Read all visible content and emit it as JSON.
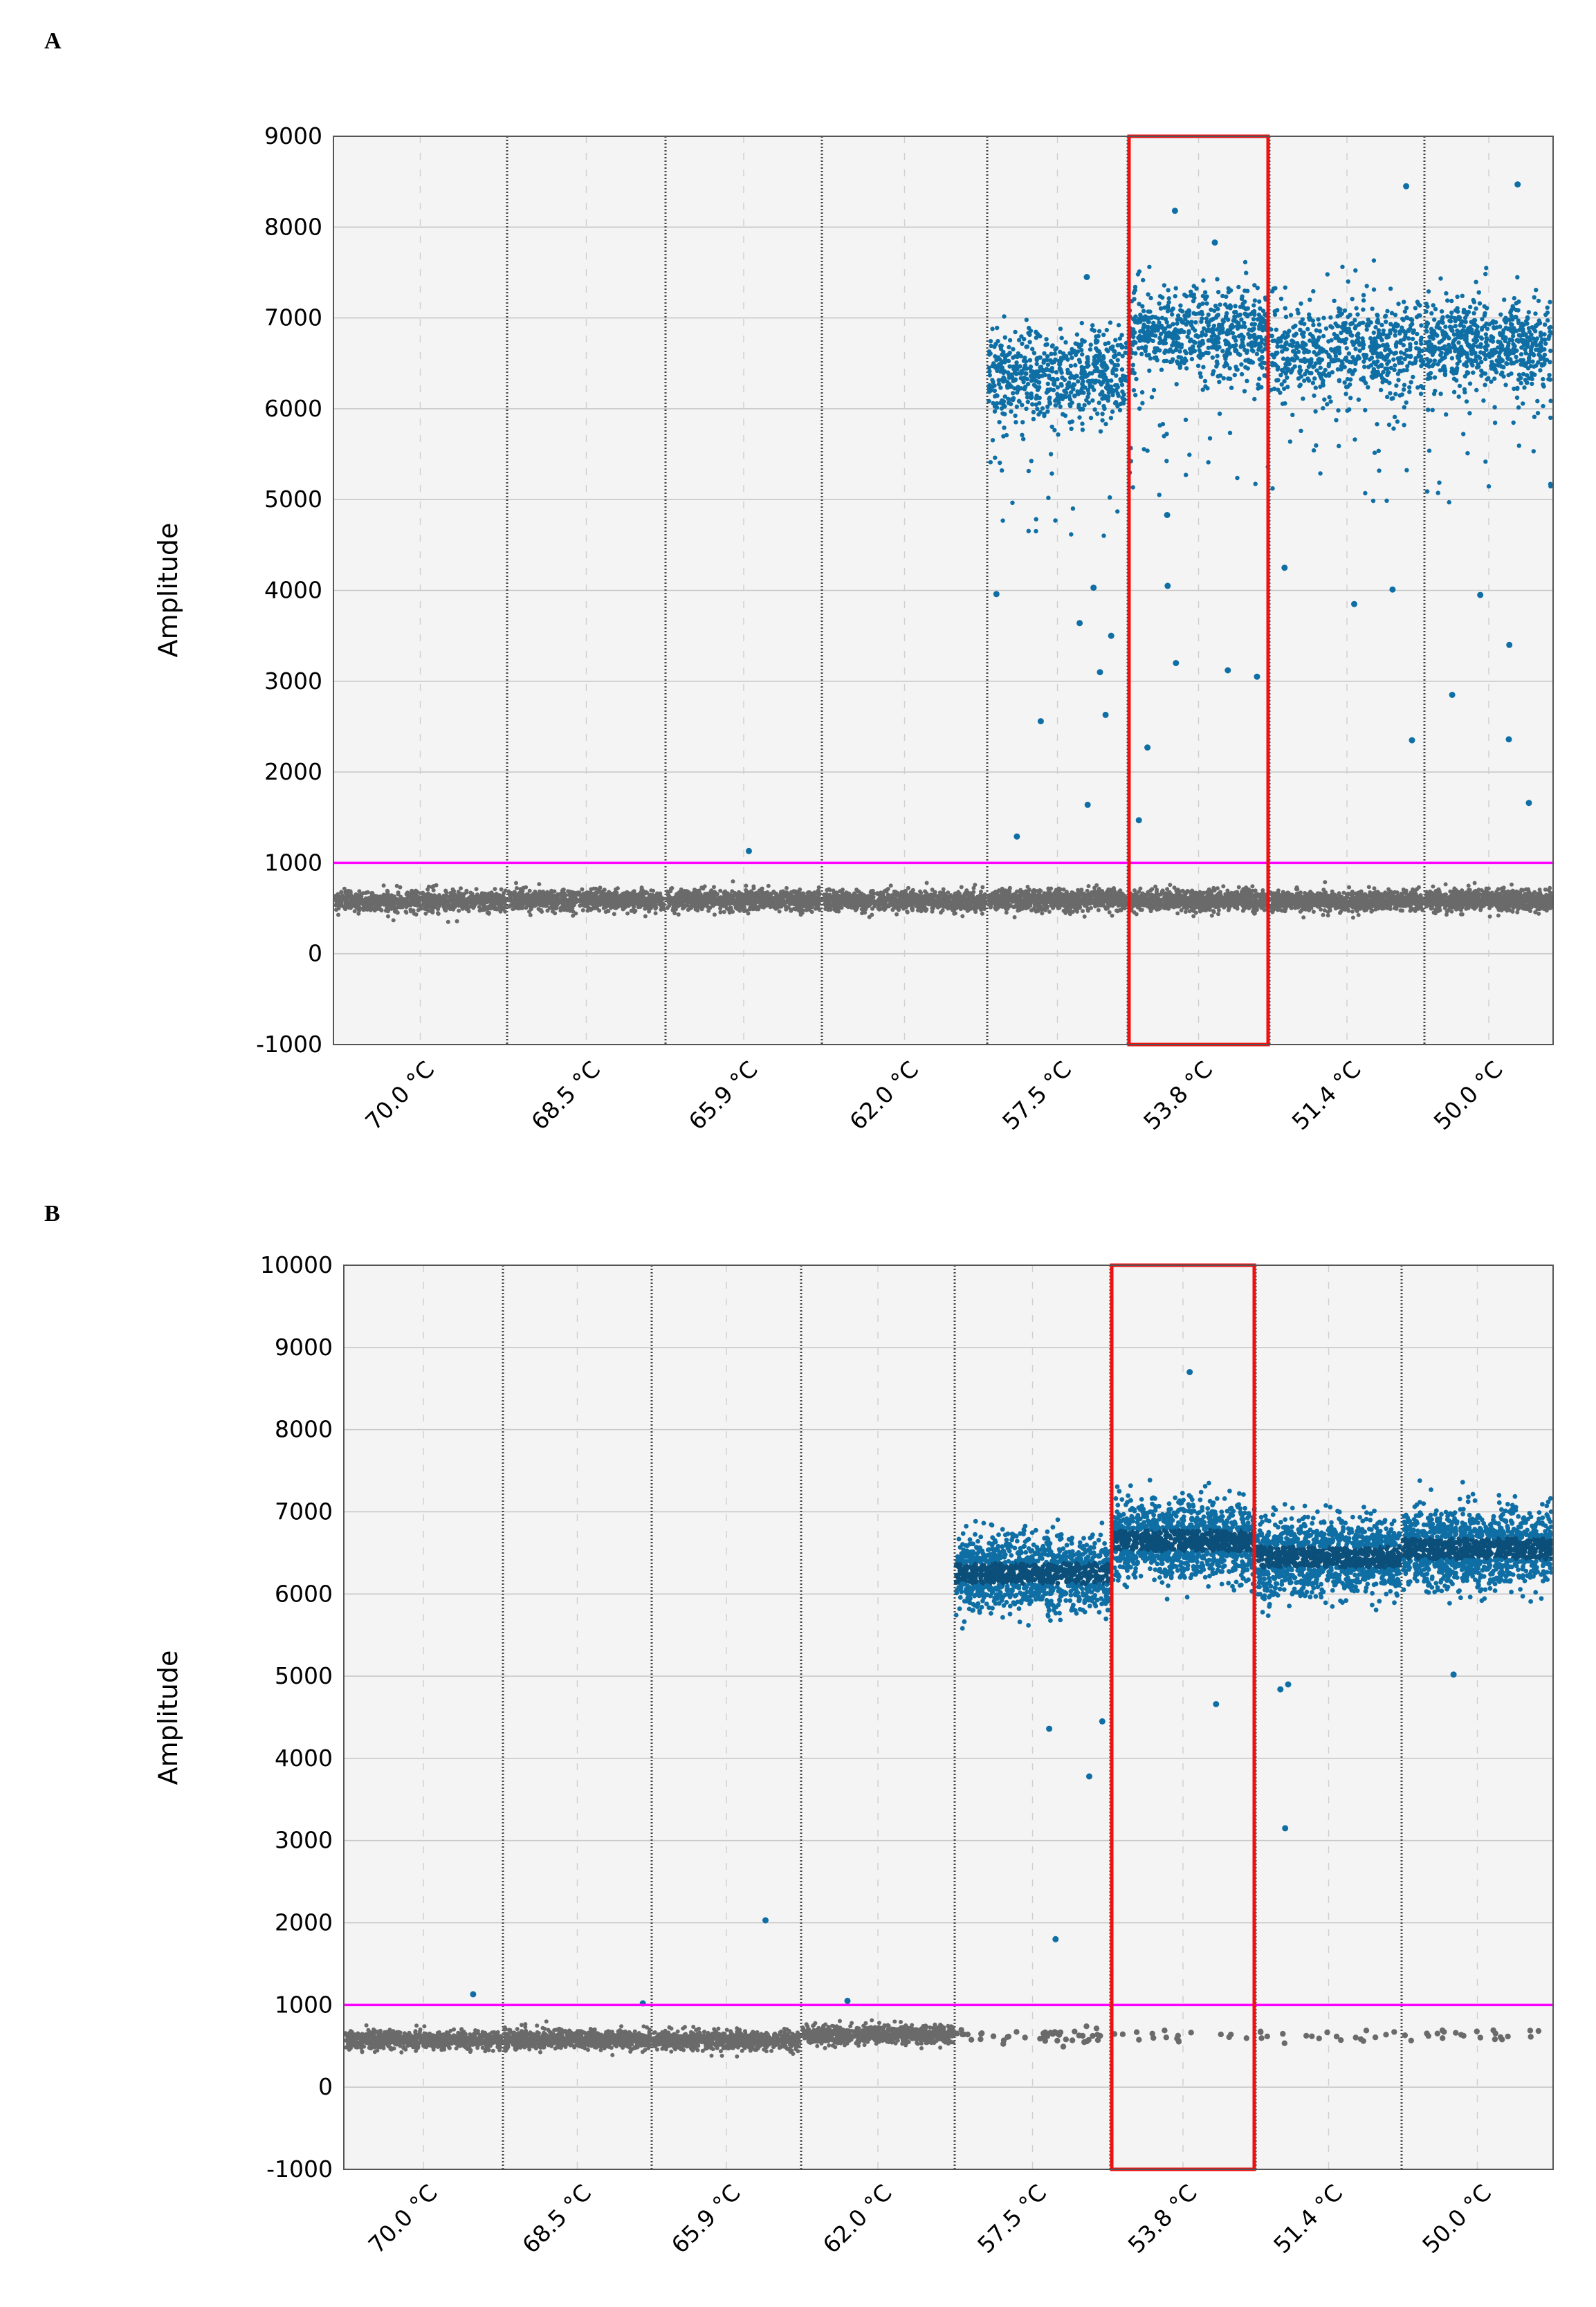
{
  "colors": {
    "plot_bg": "#f4f4f4",
    "gridline": "#c8c8c8",
    "minor_gridline": "#cfcfcf",
    "well_divider": "#444444",
    "positive": "#0f6fa5",
    "positive_dark": "#0b4f7a",
    "negative": "#6a6a6a",
    "threshold": "#ff00ff",
    "highlight": "#ee1111"
  },
  "chart_data": [
    {
      "panel_label": "A",
      "type": "scatter",
      "title": "",
      "xlabel": "",
      "ylabel": "Amplitude",
      "ylim": [
        -1000,
        9000
      ],
      "yticks": [
        -1000,
        0,
        1000,
        2000,
        3000,
        4000,
        5000,
        6000,
        7000,
        8000,
        9000
      ],
      "categories": [
        "70.0 °C",
        "68.5 °C",
        "65.9 °C",
        "62.0 °C",
        "57.5 °C",
        "53.8 °C",
        "51.4 °C",
        "50.0 °C"
      ],
      "threshold": 1000,
      "highlighted_category": "53.8 °C",
      "negative_cluster_mean": [
        580,
        590,
        590,
        580,
        590,
        590,
        580,
        590
      ],
      "positive_cluster_mean": [
        null,
        null,
        null,
        null,
        6350,
        6850,
        6650,
        6700
      ],
      "positive_density": "sparse",
      "outliers": [
        [
          2,
          1130
        ],
        [
          4,
          1640
        ],
        [
          4,
          1290
        ],
        [
          4,
          3100
        ],
        [
          4,
          3640
        ],
        [
          4,
          2560
        ],
        [
          4,
          3960
        ],
        [
          4,
          4030
        ],
        [
          4,
          2630
        ],
        [
          4,
          3500
        ],
        [
          4,
          7450
        ],
        [
          5,
          2270
        ],
        [
          5,
          1470
        ],
        [
          5,
          3200
        ],
        [
          5,
          3120
        ],
        [
          5,
          4830
        ],
        [
          5,
          4050
        ],
        [
          5,
          3050
        ],
        [
          5,
          8180
        ],
        [
          5,
          7830
        ],
        [
          6,
          4010
        ],
        [
          6,
          3850
        ],
        [
          6,
          4250
        ],
        [
          6,
          2350
        ],
        [
          6,
          8450
        ],
        [
          7,
          8470
        ],
        [
          7,
          2850
        ],
        [
          7,
          2360
        ],
        [
          7,
          1660
        ],
        [
          7,
          3400
        ],
        [
          7,
          3950
        ]
      ]
    },
    {
      "panel_label": "B",
      "type": "scatter",
      "title": "",
      "xlabel": "",
      "ylabel": "Amplitude",
      "ylim": [
        -1000,
        10000
      ],
      "yticks": [
        -1000,
        0,
        1000,
        2000,
        3000,
        4000,
        5000,
        6000,
        7000,
        8000,
        9000,
        10000
      ],
      "categories": [
        "70.0 °C",
        "68.5 °C",
        "65.9 °C",
        "62.0 °C",
        "57.5 °C",
        "53.8 °C",
        "51.4 °C",
        "50.0 °C"
      ],
      "threshold": 1000,
      "highlighted_category": "53.8 °C",
      "negative_cluster_mean": [
        580,
        580,
        570,
        640,
        620,
        620,
        620,
        620
      ],
      "negative_density": "dense-dense-dense-dense-sparse-sparse-sparse-sparse",
      "positive_cluster_mean": [
        null,
        null,
        null,
        null,
        6250,
        6650,
        6450,
        6550
      ],
      "positive_density": "dense",
      "outliers": [
        [
          0,
          1130
        ],
        [
          1,
          1020
        ],
        [
          2,
          2030
        ],
        [
          3,
          1050
        ],
        [
          4,
          4360
        ],
        [
          4,
          3780
        ],
        [
          4,
          1800
        ],
        [
          4,
          4450
        ],
        [
          5,
          8700
        ],
        [
          5,
          4660
        ],
        [
          6,
          3150
        ],
        [
          6,
          4900
        ],
        [
          6,
          4840
        ],
        [
          7,
          5020
        ]
      ]
    }
  ]
}
